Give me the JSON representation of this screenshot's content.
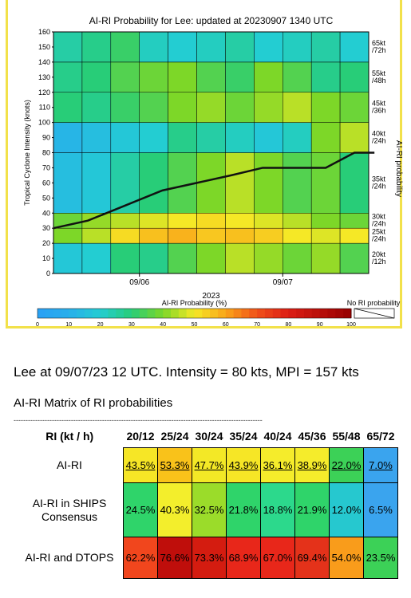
{
  "chart_data": {
    "type": "heatmap",
    "title": "AI-RI Probability for Lee: updated at 20230907 1340 UTC",
    "ylabel": "Tropical Cyclone Intensity (knots)",
    "right_label": "AI-RI probability",
    "xlabel": "2023",
    "y_ticks": [
      "0",
      "10",
      "20",
      "30",
      "40",
      "50",
      "60",
      "70",
      "80",
      "90",
      "100",
      "110",
      "120",
      "130",
      "140",
      "150",
      "160"
    ],
    "x_ticks": [
      "09/06",
      "09/07"
    ],
    "ylim": [
      0,
      160
    ],
    "rows": [
      {
        "label": "20kt /12h",
        "values": [
          18,
          20,
          30,
          28,
          35,
          40,
          45,
          42,
          38,
          42,
          35
        ]
      },
      {
        "label": "25kt /24h",
        "values": [
          40,
          45,
          52,
          56,
          58,
          55,
          56,
          54,
          50,
          48,
          50
        ]
      },
      {
        "label": "30kt /24h",
        "values": [
          38,
          42,
          45,
          48,
          50,
          52,
          50,
          48,
          45,
          40,
          38
        ]
      },
      {
        "label": "35kt /24h",
        "values": [
          15,
          18,
          25,
          30,
          35,
          40,
          45,
          40,
          35,
          38,
          30
        ]
      },
      {
        "label": "40kt /24h",
        "values": [
          12,
          15,
          18,
          20,
          28,
          25,
          22,
          18,
          22,
          40,
          45
        ]
      },
      {
        "label": "45kt /36h",
        "values": [
          30,
          28,
          32,
          35,
          40,
          42,
          38,
          42,
          45,
          40,
          38
        ]
      },
      {
        "label": "55kt /48h",
        "values": [
          28,
          30,
          35,
          38,
          40,
          35,
          32,
          40,
          35,
          28,
          30
        ]
      },
      {
        "label": "65kt /72h",
        "values": [
          25,
          28,
          32,
          22,
          20,
          22,
          25,
          20,
          22,
          25,
          20
        ]
      }
    ],
    "line": {
      "x": [
        0,
        1.2,
        2.5,
        3.8,
        5,
        6.2,
        7.3,
        8.4,
        9.5,
        10.5,
        11.2
      ],
      "y": [
        30,
        35,
        45,
        55,
        60,
        65,
        70,
        70,
        70,
        80,
        80
      ]
    },
    "colorbar": {
      "label": "AI-RI Probability (%)",
      "ticks": [
        "0",
        "10",
        "20",
        "30",
        "40",
        "50",
        "60",
        "70",
        "80",
        "90",
        "100"
      ]
    },
    "no_ri_label": "No RI probability"
  },
  "subtitle": "Lee at 09/07/23 12 UTC. Intensity = 80 kts, MPI = 157 kts",
  "matrix": {
    "title": "AI-RI Matrix of RI probabilities",
    "dashes": "--------------------------------------------------------------------------------------------------------",
    "corner": "RI (kt / h)",
    "columns": [
      "20/12",
      "25/24",
      "30/24",
      "35/24",
      "40/24",
      "45/36",
      "55/48",
      "65/72"
    ],
    "rows": [
      {
        "label": "AI-RI",
        "values": [
          "43.5%",
          "53.3%",
          "47.7%",
          "43.9%",
          "36.1%",
          "38.9%",
          "22.0%",
          "7.0%"
        ],
        "colors": [
          "#f6e626",
          "#f9c21a",
          "#f3e826",
          "#f6e626",
          "#f5ec2b",
          "#f5ec2b",
          "#3cd157",
          "#3aa4ee"
        ]
      },
      {
        "label": "AI-RI in SHIPS Consensus",
        "values": [
          "24.5%",
          "40.3%",
          "32.5%",
          "21.8%",
          "18.8%",
          "21.9%",
          "12.0%",
          "6.5%"
        ],
        "colors": [
          "#2fd46a",
          "#f3ee2c",
          "#9bdc2a",
          "#2fd46a",
          "#2cd98c",
          "#2fd46a",
          "#26c8cf",
          "#3aa4ee"
        ]
      },
      {
        "label": "AI-RI and DTOPS",
        "values": [
          "62.2%",
          "76.6%",
          "73.3%",
          "68.9%",
          "67.0%",
          "69.4%",
          "54.0%",
          "23.5%"
        ],
        "colors": [
          "#f1461d",
          "#bf0e0b",
          "#d41c10",
          "#e8271a",
          "#e8271a",
          "#e4321a",
          "#f99c1b",
          "#3cd157"
        ]
      }
    ]
  }
}
